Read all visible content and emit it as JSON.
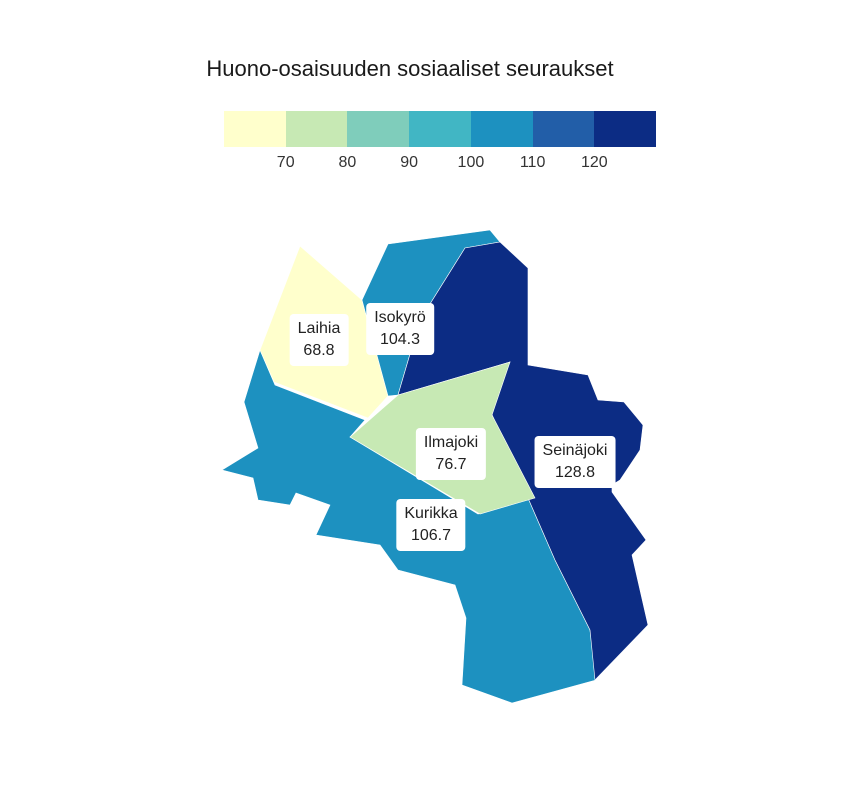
{
  "title": "Huono-osaisuuden sosiaaliset seuraukset",
  "legend": {
    "colors": [
      "#ffffcc",
      "#c7e9b4",
      "#7fcdbb",
      "#41b6c4",
      "#1d91c0",
      "#225ea8",
      "#0c2c84"
    ],
    "ticks": [
      "70",
      "80",
      "90",
      "100",
      "110",
      "120"
    ]
  },
  "regions": [
    {
      "name": "Laihia",
      "value": "68.8",
      "color": "#ffffcc"
    },
    {
      "name": "Isokyrö",
      "value": "104.3",
      "color": "#1d91c0"
    },
    {
      "name": "Ilmajoki",
      "value": "76.7",
      "color": "#c7e9b4"
    },
    {
      "name": "Seinäjoki",
      "value": "128.8",
      "color": "#0c2c84"
    },
    {
      "name": "Kurikka",
      "value": "106.7",
      "color": "#1d91c0"
    }
  ]
}
